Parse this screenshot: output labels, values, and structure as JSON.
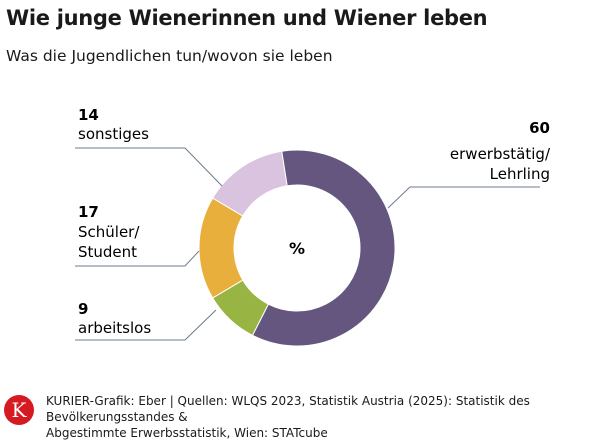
{
  "header": {
    "title": "Wie junge Wienerinnen und Wiener leben",
    "subtitle": "Was die Jugendlichen tun/wovon sie leben"
  },
  "chart_data": {
    "type": "pie",
    "donut": true,
    "center_label": "%",
    "categories": [
      "erwerbstätig/ Lehrling",
      "arbeitslos",
      "Schüler/ Student",
      "sonstiges"
    ],
    "values": [
      60,
      9,
      17,
      14
    ],
    "colors": [
      "#65567f",
      "#98b543",
      "#e8af3c",
      "#d9c3df"
    ],
    "labels": [
      {
        "value": "60",
        "lines": [
          "erwerbstätig/",
          "Lehrling"
        ]
      },
      {
        "value": "9",
        "lines": [
          "arbeitslos"
        ]
      },
      {
        "value": "17",
        "lines": [
          "Schüler/",
          "Student"
        ]
      },
      {
        "value": "14",
        "lines": [
          "sonstiges"
        ]
      }
    ]
  },
  "footer": {
    "logo_letter": "K",
    "source_line1": "KURIER-Grafik: Eber | Quellen: WLQS 2023, Statistik Austria (2025): Statistik des Bevölkerungsstandes &",
    "source_line2": "Abgestimmte Erwerbsstatistik, Wien: STATcube"
  }
}
